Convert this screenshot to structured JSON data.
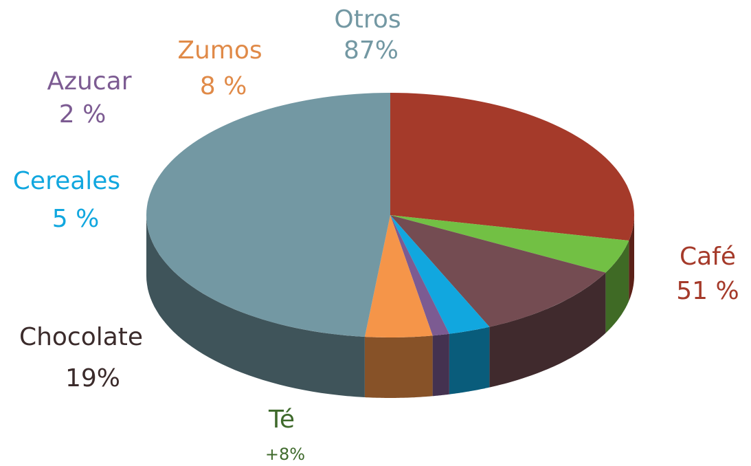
{
  "chart_data": {
    "type": "pie",
    "categories": [
      "Café",
      "Té",
      "Chocolate",
      "Cereales",
      "Azucar",
      "Zumos",
      "Otros"
    ],
    "values": [
      51,
      8,
      19,
      5,
      2,
      8,
      87
    ],
    "value_labels": [
      "51 %",
      "+8%",
      "19%",
      "5 %",
      "2 %",
      "8 %",
      "87%"
    ],
    "colors": [
      "#a53a2a",
      "#72c044",
      "#744c52",
      "#11a7df",
      "#7c5b92",
      "#f59549",
      "#7398a3"
    ],
    "label_colors": [
      "#a53a2a",
      "#3f6a2c",
      "#3b2b2b",
      "#11a7df",
      "#7c5b92",
      "#e08a48",
      "#7398a3"
    ]
  }
}
